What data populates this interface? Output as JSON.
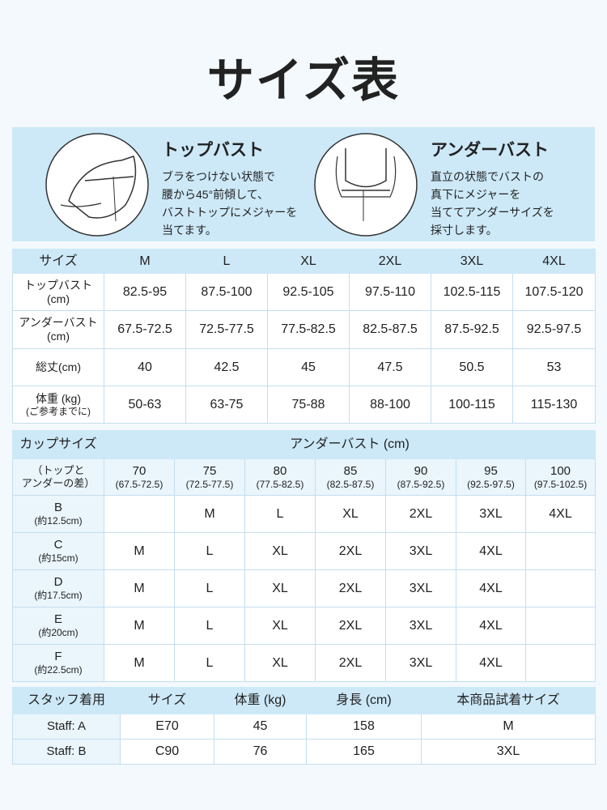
{
  "title": "サイズ表",
  "measure": [
    {
      "heading": "トップバスト",
      "lines": [
        "ブラをつけない状態で",
        "腰から45°前傾して、",
        "バストトップにメジャーを",
        "当てます。"
      ]
    },
    {
      "heading": "アンダーバスト",
      "lines": [
        "直立の状態でバストの",
        "真下にメジャーを",
        "当ててアンダーサイズを",
        "採寸します。"
      ]
    }
  ],
  "size_table": {
    "header": [
      "サイズ",
      "M",
      "L",
      "XL",
      "2XL",
      "3XL",
      "4XL"
    ],
    "rows": [
      {
        "label": [
          "トップバスト",
          "(cm)"
        ],
        "cells": [
          "82.5-95",
          "87.5-100",
          "92.5-105",
          "97.5-110",
          "102.5-115",
          "107.5-120"
        ]
      },
      {
        "label": [
          "アンダーバスト",
          "(cm)"
        ],
        "cells": [
          "67.5-72.5",
          "72.5-77.5",
          "77.5-82.5",
          "82.5-87.5",
          "87.5-92.5",
          "92.5-97.5"
        ]
      },
      {
        "label": [
          "総丈(cm)"
        ],
        "cells": [
          "40",
          "42.5",
          "45",
          "47.5",
          "50.5",
          "53"
        ]
      },
      {
        "label": [
          "体重 (kg)",
          "(ご参考までに)"
        ],
        "cells": [
          "50-63",
          "63-75",
          "75-88",
          "88-100",
          "100-115",
          "115-130"
        ]
      }
    ]
  },
  "cup_table": {
    "title": "カップサイズ",
    "subtitle": [
      "（トップと",
      "アンダーの差）"
    ],
    "header": "アンダーバスト (cm)",
    "columns": [
      {
        "value": "70",
        "range": "(67.5-72.5)"
      },
      {
        "value": "75",
        "range": "(72.5-77.5)"
      },
      {
        "value": "80",
        "range": "(77.5-82.5)"
      },
      {
        "value": "85",
        "range": "(82.5-87.5)"
      },
      {
        "value": "90",
        "range": "(87.5-92.5)"
      },
      {
        "value": "95",
        "range": "(92.5-97.5)"
      },
      {
        "value": "100",
        "range": "(97.5-102.5)"
      }
    ],
    "rows": [
      {
        "cup": "B",
        "diff": "(約12.5cm)",
        "sizes": [
          null,
          "M",
          "L",
          "XL",
          "2XL",
          "3XL",
          "4XL"
        ]
      },
      {
        "cup": "C",
        "diff": "(約15cm)",
        "sizes": [
          "M",
          "L",
          "XL",
          "2XL",
          "3XL",
          "4XL",
          null
        ]
      },
      {
        "cup": "D",
        "diff": "(約17.5cm)",
        "sizes": [
          "M",
          "L",
          "XL",
          "2XL",
          "3XL",
          "4XL",
          null
        ]
      },
      {
        "cup": "E",
        "diff": "(約20cm)",
        "sizes": [
          "M",
          "L",
          "XL",
          "2XL",
          "3XL",
          "4XL",
          null
        ]
      },
      {
        "cup": "F",
        "diff": "(約22.5cm)",
        "sizes": [
          "M",
          "L",
          "XL",
          "2XL",
          "3XL",
          "4XL",
          null
        ]
      }
    ]
  },
  "staff_table": {
    "header": [
      "スタッフ着用",
      "サイズ",
      "体重 (kg)",
      "身長 (cm)",
      "本商品試着サイズ"
    ],
    "rows": [
      [
        "Staff: A",
        "E70",
        "45",
        "158",
        "M"
      ],
      [
        "Staff: B",
        "C90",
        "76",
        "165",
        "3XL"
      ]
    ]
  }
}
